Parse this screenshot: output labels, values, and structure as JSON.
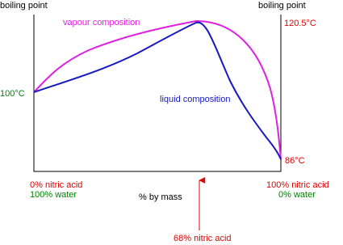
{
  "header": {
    "left_axis_label": "boiling point",
    "right_axis_label": "boiling point"
  },
  "curves": {
    "vapour": "vapour composition",
    "liquid": "liquid composition"
  },
  "temperatures": {
    "peak": "120.5°C",
    "water": "100°C",
    "nitric_acid": "86°C"
  },
  "x_axis": {
    "label": "% by mass",
    "left": [
      "0% nitric acid",
      "100% water"
    ],
    "right": [
      "100% nitric acid",
      "0% water"
    ],
    "azeotrope": "68% nitric acid"
  }
}
